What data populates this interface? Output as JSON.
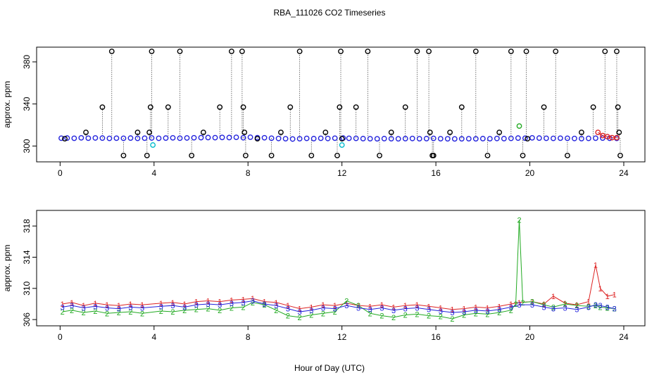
{
  "figure": {
    "title": "RBA_111026  CO2 Timeseries",
    "xlabel": "Hour of Day (UTC)"
  },
  "chart_data": [
    {
      "type": "scatter",
      "panel": "top",
      "ylabel": "approx. ppm",
      "xlim": [
        -1.0,
        24.9
      ],
      "ylim": [
        285,
        394
      ],
      "x_ticks": [
        0,
        4,
        8,
        12,
        16,
        20,
        24
      ],
      "x_tick_labels": [
        "0",
        "4",
        "8",
        "12",
        "16",
        "20",
        "24"
      ],
      "y_ticks": [
        300,
        340,
        380
      ],
      "y_tick_labels": [
        "300",
        "340",
        "380"
      ],
      "colors": {
        "baseline": "#2222dd",
        "spike": "#000000",
        "cyan": "#00bbcc",
        "green": "#22aa22",
        "red": "#dd2222"
      },
      "series": [
        {
          "role": "baseline",
          "x": [
            0.05,
            0.3,
            0.6,
            0.9,
            1.2,
            1.5,
            1.8,
            2.1,
            2.4,
            2.7,
            3.0,
            3.3,
            3.6,
            3.9,
            4.2,
            4.5,
            4.8,
            5.1,
            5.4,
            5.7,
            6.0,
            6.3,
            6.6,
            6.9,
            7.2,
            7.5,
            7.8,
            8.1,
            8.4,
            8.7,
            9.0,
            9.3,
            9.6,
            9.9,
            10.2,
            10.5,
            10.8,
            11.1,
            11.4,
            11.7,
            12.05,
            12.3,
            12.6,
            12.9,
            13.2,
            13.5,
            13.8,
            14.1,
            14.4,
            14.7,
            15.0,
            15.3,
            15.6,
            15.9,
            16.2,
            16.5,
            16.8,
            17.1,
            17.4,
            17.7,
            18.0,
            18.3,
            18.6,
            18.9,
            19.2,
            19.5,
            19.8,
            20.1,
            20.4,
            20.7,
            21.0,
            21.3,
            21.6,
            21.9,
            22.2,
            22.5,
            22.8,
            23.1,
            23.4,
            23.7
          ],
          "y": [
            307.5,
            307.6,
            307.4,
            307.8,
            307.5,
            307.7,
            307.6,
            307.3,
            307.5,
            307.4,
            307.6,
            307.3,
            307.5,
            307.7,
            307.4,
            307.6,
            307.8,
            307.5,
            307.7,
            307.9,
            308.0,
            308.1,
            308.0,
            308.2,
            308.1,
            308.3,
            307.9,
            308.4,
            308.0,
            307.9,
            307.5,
            307.2,
            307.0,
            306.7,
            307.0,
            307.3,
            307.1,
            307.4,
            307.2,
            307.5,
            307.6,
            307.4,
            307.3,
            307.1,
            307.0,
            306.9,
            307.1,
            307.0,
            306.9,
            307.1,
            307.2,
            307.0,
            307.1,
            307.3,
            307.0,
            306.9,
            306.8,
            306.9,
            307.0,
            306.9,
            307.1,
            307.0,
            307.2,
            307.1,
            307.3,
            307.6,
            307.5,
            307.8,
            307.6,
            307.4,
            307.3,
            307.5,
            307.4,
            307.2,
            307.1,
            307.3,
            307.5,
            307.6,
            307.4,
            307.3
          ]
        },
        {
          "role": "spikes",
          "x": [
            0.2,
            1.1,
            1.8,
            2.2,
            2.7,
            3.3,
            3.7,
            3.8,
            3.85,
            3.9,
            4.6,
            5.1,
            5.6,
            6.1,
            6.8,
            7.3,
            7.75,
            7.8,
            7.85,
            7.9,
            8.4,
            9.0,
            9.4,
            9.8,
            10.2,
            10.7,
            11.3,
            11.8,
            11.9,
            11.95,
            12.0,
            12.6,
            13.1,
            13.6,
            14.1,
            14.7,
            15.2,
            15.7,
            15.75,
            15.85,
            15.9,
            16.6,
            17.1,
            17.7,
            18.2,
            18.7,
            19.2,
            19.7,
            19.85,
            19.9,
            20.6,
            21.1,
            21.6,
            22.2,
            22.7,
            23.2,
            23.7,
            23.75,
            23.8,
            23.85
          ],
          "y": [
            307,
            313,
            337,
            390,
            291,
            313,
            291,
            313,
            337,
            390,
            337,
            390,
            291,
            313,
            337,
            390,
            390,
            337,
            313,
            291,
            307,
            291,
            313,
            337,
            390,
            291,
            313,
            291,
            337,
            390,
            307,
            337,
            390,
            291,
            313,
            337,
            390,
            390,
            313,
            291,
            291,
            313,
            337,
            390,
            291,
            313,
            390,
            291,
            390,
            307,
            337,
            390,
            291,
            313,
            337,
            390,
            390,
            337,
            313,
            291
          ]
        },
        {
          "role": "cyan",
          "x": [
            3.95,
            12.0
          ],
          "y": [
            301,
            301
          ]
        },
        {
          "role": "green",
          "x": [
            19.55
          ],
          "y": [
            319
          ]
        },
        {
          "role": "red",
          "x": [
            22.9,
            23.1,
            23.3,
            23.5,
            23.7
          ],
          "y": [
            313,
            310,
            309,
            308,
            308
          ]
        }
      ]
    },
    {
      "type": "scatter",
      "panel": "bottom",
      "ylabel": "approx. ppm",
      "xlim": [
        -1.0,
        24.9
      ],
      "ylim": [
        305.2,
        320.0
      ],
      "x_ticks": [
        0,
        4,
        8,
        12,
        16,
        20,
        24
      ],
      "x_tick_labels": [
        "0",
        "4",
        "8",
        "12",
        "16",
        "20",
        "24"
      ],
      "y_ticks": [
        306,
        310,
        314,
        318
      ],
      "y_tick_labels": [
        "306",
        "310",
        "314",
        "318"
      ],
      "colors": {
        "1": "#dd2222",
        "2": "#22aa22",
        "3": "#2222dd"
      },
      "series": [
        {
          "name": "1",
          "marker": "1",
          "x": [
            0.1,
            0.5,
            1.0,
            1.5,
            2.0,
            2.5,
            3.0,
            3.5,
            4.3,
            4.8,
            5.3,
            5.8,
            6.3,
            6.8,
            7.3,
            7.8,
            8.2,
            8.7,
            9.2,
            9.7,
            10.2,
            10.7,
            11.2,
            11.7,
            12.2,
            12.7,
            13.2,
            13.7,
            14.2,
            14.7,
            15.2,
            15.7,
            16.2,
            16.7,
            17.2,
            17.7,
            18.2,
            18.7,
            19.2,
            19.55,
            20.1,
            20.6,
            21.0,
            21.5,
            22.0,
            22.5,
            22.8,
            23.0,
            23.3,
            23.6
          ],
          "y": [
            308.0,
            308.2,
            307.8,
            308.1,
            307.9,
            307.8,
            308.0,
            307.9,
            308.1,
            308.2,
            308.0,
            308.3,
            308.4,
            308.3,
            308.5,
            308.6,
            308.7,
            308.3,
            308.2,
            307.8,
            307.4,
            307.6,
            307.9,
            307.8,
            308.1,
            307.8,
            307.7,
            307.9,
            307.6,
            307.8,
            307.9,
            307.7,
            307.5,
            307.3,
            307.4,
            307.6,
            307.5,
            307.7,
            308.0,
            308.2,
            308.3,
            308.0,
            309.0,
            308.1,
            307.9,
            308.3,
            313.0,
            310.0,
            309.0,
            309.2
          ]
        },
        {
          "name": "2",
          "marker": "2",
          "x": [
            0.1,
            0.5,
            1.0,
            1.5,
            2.0,
            2.5,
            3.0,
            3.5,
            4.3,
            4.8,
            5.3,
            5.8,
            6.3,
            6.8,
            7.3,
            7.8,
            8.2,
            8.7,
            9.2,
            9.7,
            10.2,
            10.7,
            11.2,
            11.7,
            12.2,
            12.7,
            13.2,
            13.7,
            14.2,
            14.7,
            15.2,
            15.7,
            16.2,
            16.7,
            17.2,
            17.7,
            18.2,
            18.7,
            19.2,
            19.4,
            19.55,
            19.7,
            20.1,
            20.6,
            21.0,
            21.5,
            22.0,
            22.5,
            22.8,
            23.0,
            23.3,
            23.6
          ],
          "y": [
            307.0,
            307.2,
            306.9,
            307.1,
            306.8,
            306.9,
            307.0,
            306.8,
            307.1,
            307.0,
            307.2,
            307.3,
            307.4,
            307.2,
            307.5,
            307.6,
            308.2,
            307.9,
            307.2,
            306.5,
            306.3,
            306.6,
            306.8,
            307.0,
            308.4,
            307.8,
            306.8,
            306.5,
            306.3,
            306.6,
            306.7,
            306.5,
            306.4,
            306.1,
            306.6,
            306.8,
            306.7,
            306.9,
            307.2,
            308.0,
            318.8,
            308.2,
            308.3,
            307.9,
            307.6,
            308.0,
            307.8,
            307.7,
            307.8,
            307.6,
            307.5,
            307.4
          ]
        },
        {
          "name": "3",
          "marker": "3",
          "x": [
            0.1,
            0.5,
            1.0,
            1.5,
            2.0,
            2.5,
            3.0,
            3.5,
            4.3,
            4.8,
            5.3,
            5.8,
            6.3,
            6.8,
            7.3,
            7.8,
            8.2,
            8.7,
            9.2,
            9.7,
            10.2,
            10.7,
            11.2,
            11.7,
            12.2,
            12.7,
            13.2,
            13.7,
            14.2,
            14.7,
            15.2,
            15.7,
            16.2,
            16.7,
            17.2,
            17.7,
            18.2,
            18.7,
            19.2,
            19.55,
            20.1,
            20.6,
            21.0,
            21.5,
            22.0,
            22.5,
            22.8,
            23.0,
            23.3,
            23.6
          ],
          "y": [
            307.6,
            307.8,
            307.5,
            307.7,
            307.5,
            307.4,
            307.6,
            307.5,
            307.7,
            307.8,
            307.6,
            307.9,
            308.0,
            307.9,
            308.1,
            308.2,
            308.4,
            308.0,
            307.8,
            307.4,
            307.0,
            307.2,
            307.5,
            307.4,
            307.8,
            307.5,
            307.3,
            307.5,
            307.2,
            307.4,
            307.5,
            307.3,
            307.1,
            306.9,
            307.0,
            307.2,
            307.1,
            307.3,
            307.6,
            307.9,
            307.9,
            307.6,
            307.4,
            307.5,
            307.3,
            307.6,
            307.9,
            307.8,
            307.6,
            307.4
          ]
        }
      ]
    }
  ]
}
